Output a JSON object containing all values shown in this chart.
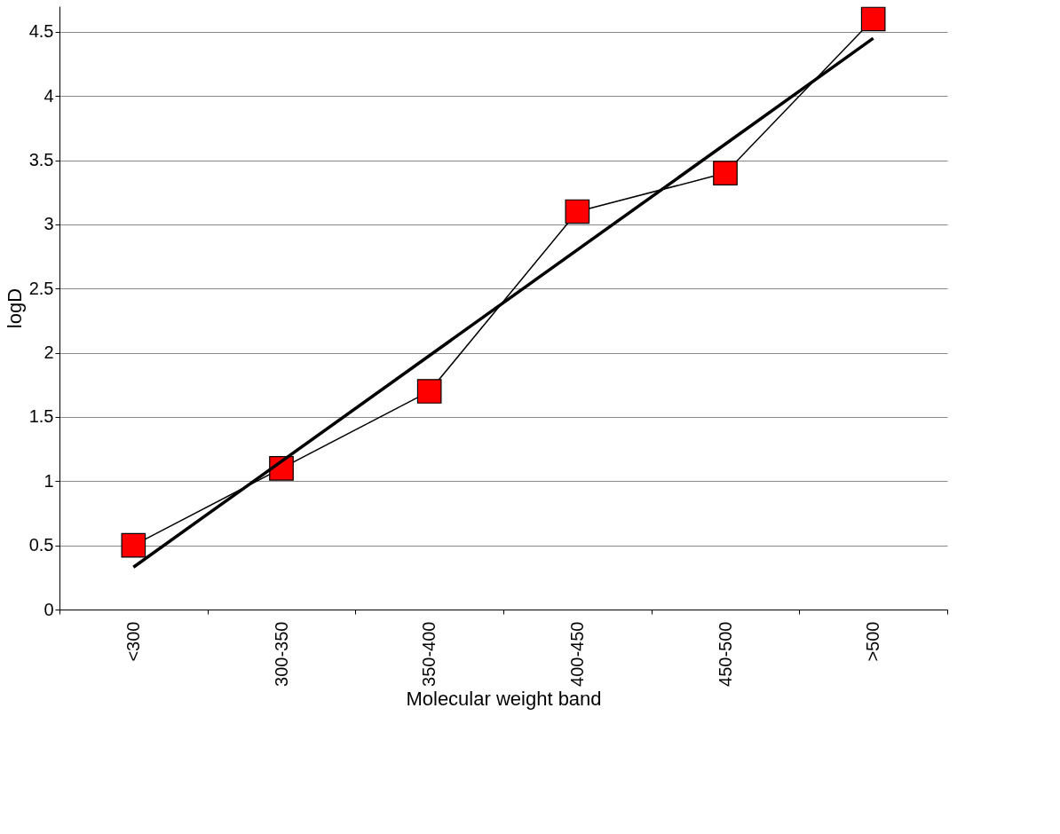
{
  "chart_data": {
    "type": "line",
    "xlabel": "Molecular weight band",
    "ylabel": "logD",
    "categories": [
      "<300",
      "300-350",
      "350-400",
      "400-450",
      "450-500",
      ">500"
    ],
    "series": [
      {
        "color": "#ff0000",
        "values": [
          0.5,
          1.1,
          1.7,
          3.1,
          3.4,
          4.6
        ],
        "marker": "square"
      },
      {
        "type": "line",
        "x": [
          "<300",
          ">500"
        ],
        "values": [
          0.33,
          4.45
        ],
        "color": "#000000",
        "marker": "none"
      }
    ],
    "ylim": [
      0,
      4.7
    ],
    "yticks": [
      0,
      0.5,
      1,
      1.5,
      2,
      2.5,
      3,
      3.5,
      4,
      4.5
    ],
    "grid": "y"
  }
}
